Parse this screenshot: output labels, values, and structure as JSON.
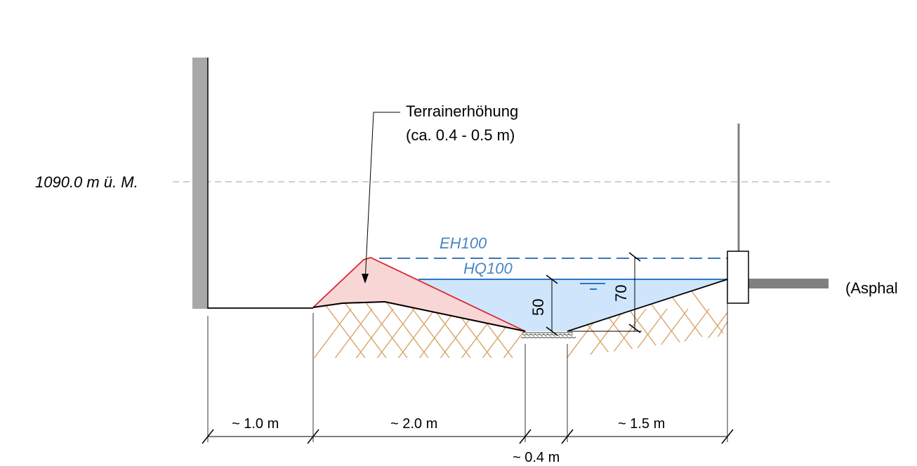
{
  "labels": {
    "elevation": "1090.0 m ü. M.",
    "terrain_title": "Terrainerhöhung",
    "terrain_sub": "(ca. 0.4 - 0.5 m)",
    "eh100": "EH100",
    "hq100": "HQ100",
    "depth_50": "50",
    "depth_70": "70",
    "asphalt": "(Asphal"
  },
  "dimensions": {
    "d1": "~ 1.0 m",
    "d2": "~ 2.0 m",
    "d3": "~ 0.4 m",
    "d4": "~ 1.5 m"
  },
  "colors": {
    "wall": "#a8a8a8",
    "fill_red": "#f9d6d6",
    "stroke_red": "#d9262c",
    "water": "#cfe5fb",
    "water_line": "#2a78c6",
    "eh_line": "#3f74b4",
    "soil": "#d7a56a",
    "dashline": "#a0a0a0"
  }
}
